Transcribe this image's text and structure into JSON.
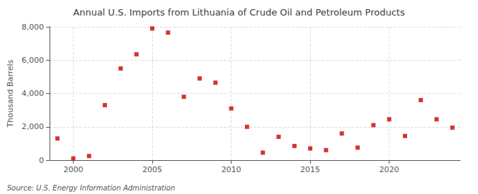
{
  "chart_data": {
    "type": "scatter",
    "title": "Annual U.S. Imports from Lithuania of Crude Oil and Petroleum Products",
    "ylabel": "Thousand Barrels",
    "annotations": [
      "Source: U.S. Energy Information Administration"
    ],
    "x": [
      1999,
      2000,
      2001,
      2002,
      2003,
      2004,
      2005,
      2006,
      2007,
      2008,
      2009,
      2010,
      2011,
      2012,
      2013,
      2014,
      2015,
      2016,
      2017,
      2018,
      2019,
      2020,
      2021,
      2022,
      2023,
      2024
    ],
    "values": [
      1300,
      100,
      250,
      3300,
      5500,
      6350,
      7900,
      7650,
      3800,
      4900,
      4650,
      3100,
      2000,
      450,
      1400,
      850,
      700,
      600,
      1600,
      750,
      2100,
      2450,
      1450,
      3600,
      2450,
      1950
    ],
    "color": "#cc0000",
    "marker": "square",
    "xlim": [
      1998.5,
      2024.5
    ],
    "xticks": [
      2000,
      2005,
      2010,
      2015,
      2020
    ],
    "ylim": [
      0,
      8000
    ],
    "yticks": [
      0,
      {
        "value": 2000,
        "label": "2,000"
      },
      {
        "value": 4000,
        "label": "4,000"
      },
      {
        "value": 6000,
        "label": "6,000"
      },
      {
        "value": 8000,
        "label": "8,000"
      }
    ],
    "grid": true
  }
}
